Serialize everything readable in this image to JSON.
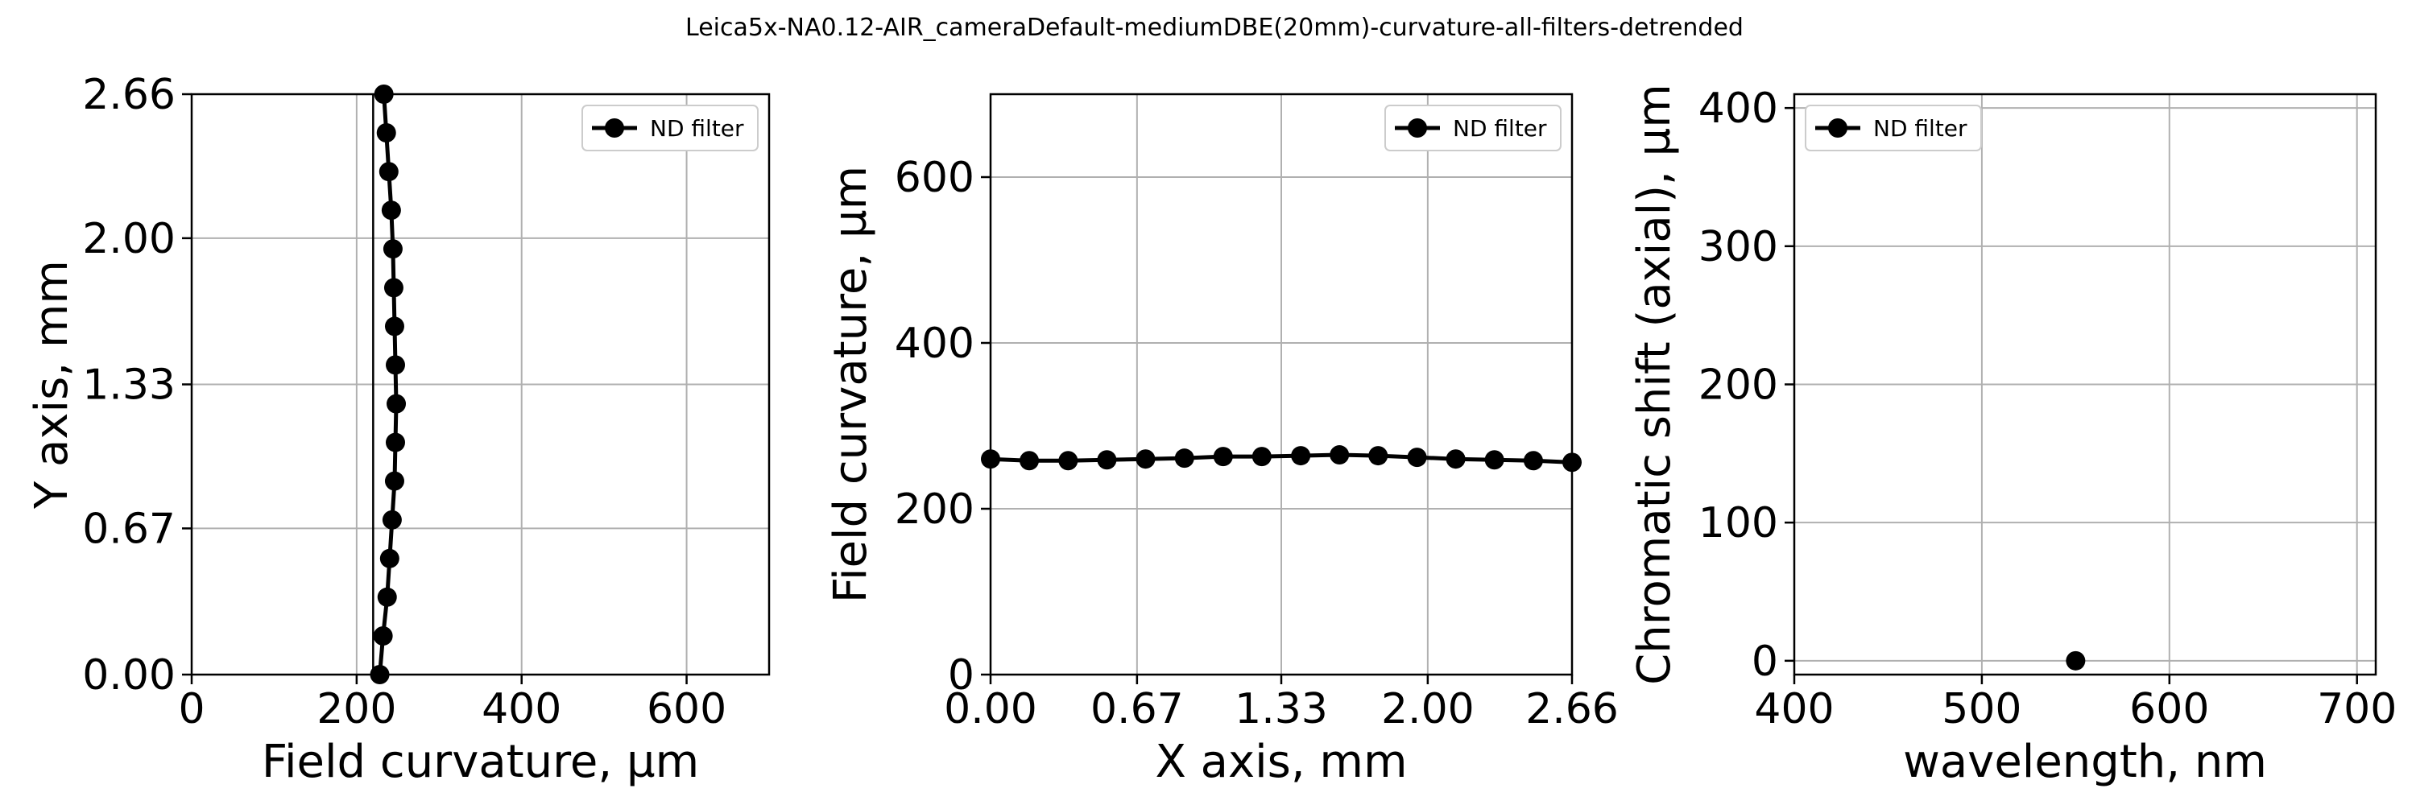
{
  "figure_title": "Leica5x-NA0.12-AIR_cameraDefault-mediumDBE(20mm)-curvature-all-filters-detrended",
  "chart_data": [
    {
      "type": "line",
      "orientation": "vertical",
      "xlabel": "Field curvature, µm",
      "ylabel": "Y axis, mm",
      "xlim": [
        0,
        700
      ],
      "ylim": [
        0,
        2.66
      ],
      "xticks": [
        0,
        200,
        400,
        600
      ],
      "xtick_labels": [
        "0",
        "200",
        "400",
        "600"
      ],
      "yticks": [
        0,
        0.67,
        1.33,
        2.0,
        2.66
      ],
      "ytick_labels": [
        "0.00",
        "0.67",
        "1.33",
        "2.00",
        "2.66"
      ],
      "vertical_line_x": 220,
      "grid": true,
      "legend_position": "upper right",
      "series": [
        {
          "name": "ND filter",
          "color": "#000000",
          "marker": "circle",
          "x": [
            228,
            232,
            237,
            240,
            243,
            246,
            247,
            248,
            247,
            246,
            245,
            244,
            242,
            239,
            236,
            233
          ],
          "y": [
            0.0,
            0.177,
            0.355,
            0.532,
            0.709,
            0.887,
            1.064,
            1.241,
            1.419,
            1.596,
            1.773,
            1.951,
            2.128,
            2.305,
            2.483,
            2.66
          ]
        }
      ]
    },
    {
      "type": "line",
      "xlabel": "X axis, mm",
      "ylabel": "Field curvature, µm",
      "xlim": [
        0,
        2.66
      ],
      "ylim": [
        0,
        700
      ],
      "xticks": [
        0,
        0.67,
        1.33,
        2.0,
        2.66
      ],
      "xtick_labels": [
        "0.00",
        "0.67",
        "1.33",
        "2.00",
        "2.66"
      ],
      "yticks": [
        0,
        200,
        400,
        600
      ],
      "ytick_labels": [
        "0",
        "200",
        "400",
        "600"
      ],
      "grid": true,
      "legend_position": "upper right",
      "series": [
        {
          "name": "ND filter",
          "color": "#000000",
          "marker": "circle",
          "x": [
            0.0,
            0.177,
            0.355,
            0.532,
            0.709,
            0.887,
            1.064,
            1.241,
            1.419,
            1.596,
            1.773,
            1.951,
            2.128,
            2.305,
            2.483,
            2.66
          ],
          "y": [
            260,
            258,
            258,
            259,
            260,
            261,
            263,
            263,
            264,
            265,
            264,
            262,
            260,
            259,
            258,
            256
          ]
        }
      ]
    },
    {
      "type": "scatter",
      "xlabel": "wavelength, nm",
      "ylabel": "Chromatic shift (axial), µm",
      "xlim": [
        400,
        710
      ],
      "ylim": [
        -10,
        410
      ],
      "xticks": [
        400,
        500,
        600,
        700
      ],
      "xtick_labels": [
        "400",
        "500",
        "600",
        "700"
      ],
      "yticks": [
        0,
        100,
        200,
        300,
        400
      ],
      "ytick_labels": [
        "0",
        "100",
        "200",
        "300",
        "400"
      ],
      "grid": true,
      "legend_position": "upper left",
      "series": [
        {
          "name": "ND filter",
          "color": "#000000",
          "marker": "circle",
          "x": [
            550
          ],
          "y": [
            0
          ]
        }
      ]
    }
  ]
}
